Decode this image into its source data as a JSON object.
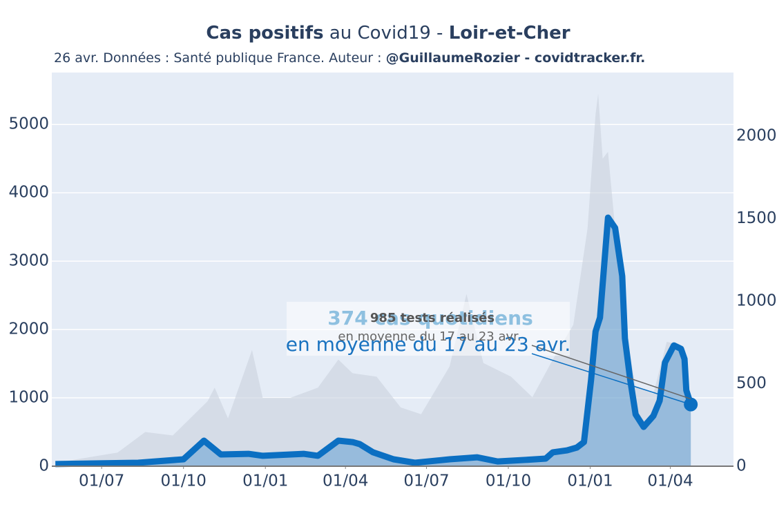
{
  "chart_data": {
    "type": "line",
    "title": [
      "Cas positifs",
      " au Covid19 - ",
      "Loir-et-Cher"
    ],
    "subtitle": [
      "26 avr. Données : Santé publique France. Auteur : ",
      "@GuillaumeRozier - covidtracker.fr."
    ],
    "xlim": [
      -56,
      710
    ],
    "xticks": [
      {
        "value": 0,
        "label": "01/07"
      },
      {
        "value": 92,
        "label": "01/10"
      },
      {
        "value": 184,
        "label": "01/01"
      },
      {
        "value": 274,
        "label": "01/04"
      },
      {
        "value": 365,
        "label": "01/07"
      },
      {
        "value": 457,
        "label": "01/10"
      },
      {
        "value": 549,
        "label": "01/01"
      },
      {
        "value": 639,
        "label": "01/04"
      }
    ],
    "ylim": [
      0,
      5760
    ],
    "yticks": [
      0,
      1000,
      2000,
      3000,
      4000,
      5000
    ],
    "y2lim": [
      0,
      2385
    ],
    "y2ticks": [
      0,
      500,
      1000,
      1500,
      2000
    ],
    "grid": true,
    "series": [
      {
        "name": "tests",
        "color": "#c9d2de",
        "axis": "y",
        "x": [
          -52,
          18,
          49,
          80,
          119,
          127,
          142,
          169,
          181,
          212,
          243,
          266,
          282,
          309,
          336,
          359,
          391,
          410,
          429,
          460,
          484,
          507,
          530,
          546,
          555,
          558,
          563,
          569,
          577,
          588,
          600,
          620,
          635,
          651,
          662
        ],
        "values": [
          50,
          200,
          500,
          450,
          950,
          1150,
          700,
          1700,
          1000,
          1000,
          1150,
          1560,
          1360,
          1310,
          860,
          760,
          1460,
          2520,
          1510,
          1310,
          1010,
          1560,
          2070,
          3480,
          5150,
          5450,
          4500,
          4600,
          3480,
          2070,
          1160,
          1060,
          1820,
          1770,
          985
        ]
      },
      {
        "name": "cas",
        "color": "#0b6fc2",
        "axis": "y2",
        "x": [
          -52,
          41,
          92,
          115,
          134,
          165,
          181,
          227,
          243,
          266,
          282,
          290,
          305,
          328,
          352,
          391,
          422,
          445,
          476,
          499,
          507,
          523,
          534,
          542,
          550,
          555,
          560,
          569,
          577,
          585,
          588,
          594,
          600,
          609,
          620,
          627,
          633,
          643,
          651,
          655,
          657,
          662
        ],
        "values": [
          13,
          21,
          42,
          155,
          71,
          75,
          63,
          75,
          63,
          155,
          146,
          134,
          84,
          42,
          21,
          42,
          54,
          29,
          38,
          46,
          84,
          96,
          113,
          146,
          523,
          816,
          900,
          1506,
          1444,
          1151,
          774,
          523,
          314,
          238,
          305,
          397,
          628,
          732,
          711,
          649,
          460,
          374
        ]
      }
    ],
    "annotations": [
      {
        "text": "374 cas quotidiens",
        "sub": "en moyenne du 17 au 23 avr."
      },
      {
        "text": "985 tests réalisés",
        "sub": "en moyenne du 17 au 23 avr."
      }
    ]
  }
}
